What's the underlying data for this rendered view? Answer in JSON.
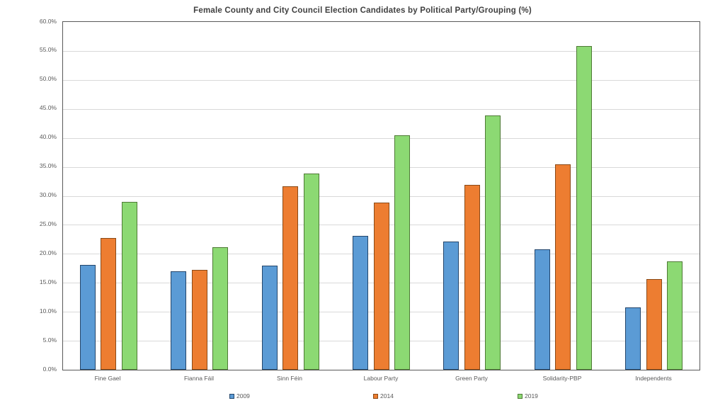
{
  "window": {
    "background_color": "#ffffff",
    "text_color": "#595959",
    "title_color": "#404040",
    "gridline_color": "#d9d9d9",
    "plot_border_color": "#595959"
  },
  "chart_data": {
    "type": "bar",
    "title": "Female County and City Council Election Candidates by Political Party/Grouping (%)",
    "categories": [
      "Fine Gael",
      "Fianna Fáil",
      "Sinn Féin",
      "Labour Party",
      "Green Party",
      "Solidarity-PBP",
      "Independents"
    ],
    "series": [
      {
        "name": "2009",
        "color": "#5B9BD5",
        "border_color": "#24466b",
        "values": [
          18.1,
          17.0,
          18.0,
          23.1,
          22.1,
          20.8,
          10.8
        ]
      },
      {
        "name": "2014",
        "color": "#ED7D31",
        "border_color": "#8a4a17",
        "values": [
          22.7,
          17.2,
          31.6,
          28.9,
          31.9,
          35.4,
          15.6
        ]
      },
      {
        "name": "2019",
        "color": "#8CD973",
        "border_color": "#4e7a35",
        "values": [
          29.0,
          21.1,
          33.9,
          40.5,
          43.9,
          55.8,
          18.7
        ]
      }
    ],
    "xlabel": "",
    "ylabel": "",
    "ylim": [
      0,
      60
    ],
    "ytick_step": 5,
    "ytick_labels": [
      "0.0%",
      "5.0%",
      "10.0%",
      "15.0%",
      "20.0%",
      "25.0%",
      "30.0%",
      "35.0%",
      "40.0%",
      "45.0%",
      "50.0%",
      "55.0%",
      "60.0%"
    ],
    "grid": true,
    "legend_position": "bottom"
  }
}
